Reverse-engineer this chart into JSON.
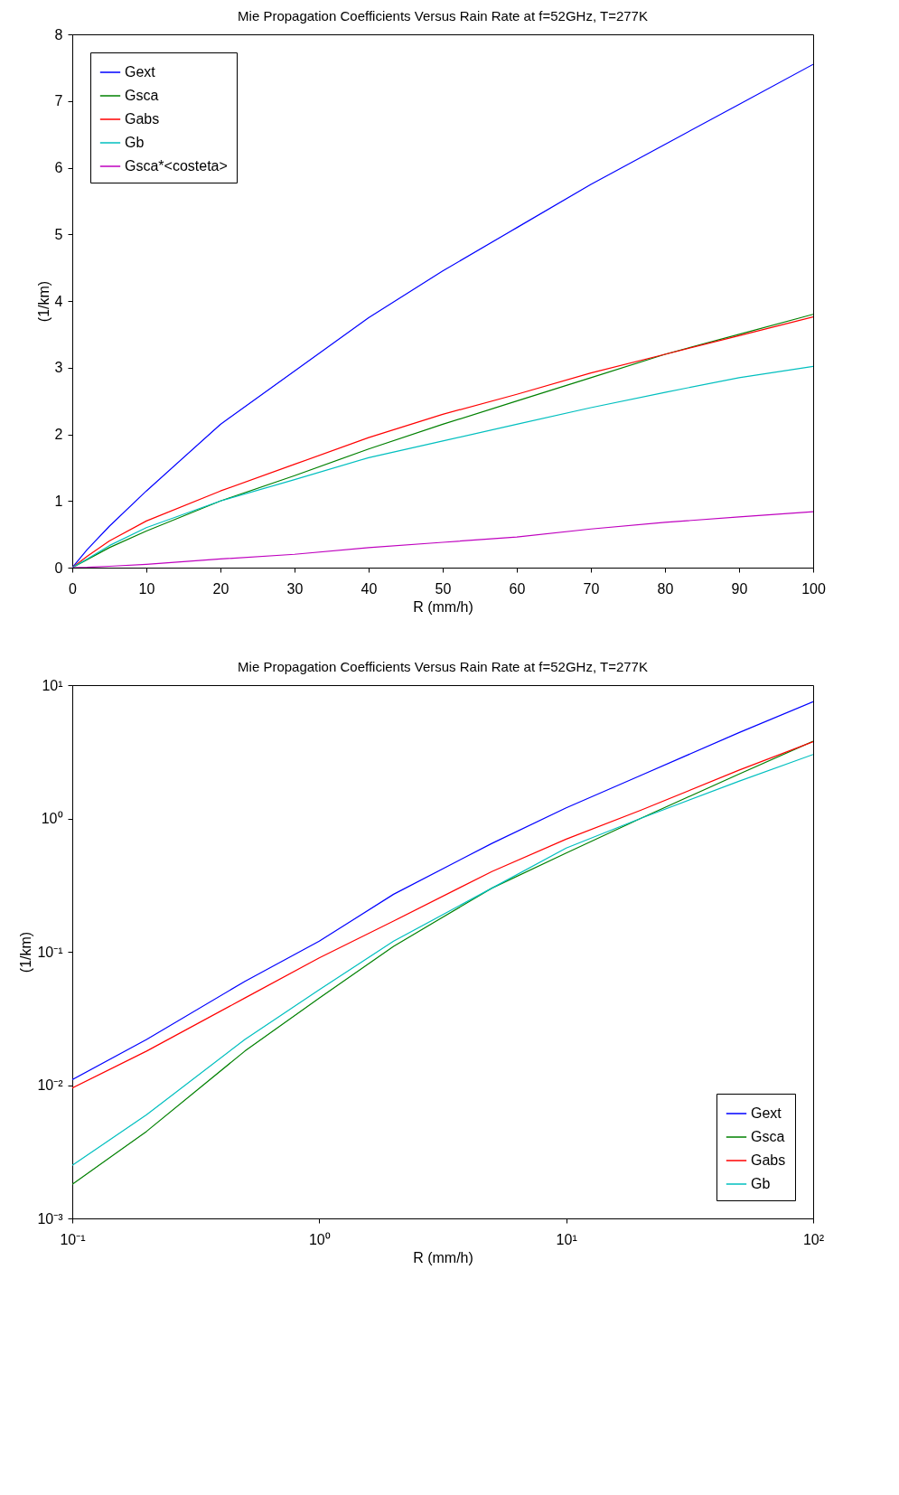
{
  "chart_data": [
    {
      "type": "line",
      "title": "Mie Propagation Coefficients Versus Rain Rate at f=52GHz, T=277K",
      "xlabel": "R (mm/h)",
      "ylabel": "(1/km)",
      "x": [
        0,
        2,
        5,
        10,
        20,
        30,
        40,
        50,
        60,
        70,
        80,
        90,
        100
      ],
      "xlim": [
        0,
        100
      ],
      "xticks": [
        0,
        10,
        20,
        30,
        40,
        50,
        60,
        70,
        80,
        90,
        100
      ],
      "ylim": [
        0,
        8
      ],
      "yticks": [
        0,
        1,
        2,
        3,
        4,
        5,
        6,
        7,
        8
      ],
      "legend": "top left",
      "grid": false,
      "series": [
        {
          "name": "Gext",
          "color": "#0000ff",
          "values": [
            0,
            0.27,
            0.62,
            1.15,
            2.15,
            2.95,
            3.75,
            4.45,
            5.1,
            5.75,
            6.35,
            6.95,
            7.55
          ]
        },
        {
          "name": "Gsca",
          "color": "#008000",
          "values": [
            0,
            0.12,
            0.3,
            0.55,
            1.0,
            1.38,
            1.78,
            2.15,
            2.5,
            2.85,
            3.2,
            3.5,
            3.8
          ]
        },
        {
          "name": "Gabs",
          "color": "#ff0000",
          "values": [
            0,
            0.17,
            0.4,
            0.7,
            1.15,
            1.55,
            1.95,
            2.3,
            2.6,
            2.92,
            3.2,
            3.48,
            3.76
          ]
        },
        {
          "name": "Gb",
          "color": "#00bfbf",
          "values": [
            0,
            0.13,
            0.33,
            0.6,
            1.0,
            1.32,
            1.65,
            1.9,
            2.15,
            2.4,
            2.63,
            2.85,
            3.02
          ]
        },
        {
          "name": "Gsca*<costeta>",
          "color": "#bf00bf",
          "values": [
            0,
            0.005,
            0.02,
            0.05,
            0.13,
            0.2,
            0.3,
            0.38,
            0.46,
            0.58,
            0.68,
            0.76,
            0.84
          ]
        }
      ]
    },
    {
      "type": "line",
      "title": "Mie Propagation Coefficients Versus Rain Rate at f=52GHz, T=277K",
      "xlabel": "R (mm/h)",
      "ylabel": "(1/km)",
      "x": [
        0.1,
        0.2,
        0.5,
        1,
        2,
        5,
        10,
        20,
        50,
        100
      ],
      "log": "xy",
      "xlim": [
        0.1,
        100
      ],
      "xticks": [
        {
          "value": 0.1,
          "label": "10⁻¹"
        },
        {
          "value": 1,
          "label": "10⁰"
        },
        {
          "value": 10,
          "label": "10¹"
        },
        {
          "value": 100,
          "label": "10²"
        }
      ],
      "ylim": [
        0.001,
        10
      ],
      "yticks": [
        {
          "value": 0.001,
          "label": "10⁻³"
        },
        {
          "value": 0.01,
          "label": "10⁻²"
        },
        {
          "value": 0.1,
          "label": "10⁻¹"
        },
        {
          "value": 1,
          "label": "10⁰"
        },
        {
          "value": 10,
          "label": "10¹"
        }
      ],
      "legend": "bottom right",
      "grid": false,
      "series": [
        {
          "name": "Gext",
          "color": "#0000ff",
          "values": [
            0.011,
            0.022,
            0.06,
            0.12,
            0.27,
            0.65,
            1.2,
            2.1,
            4.4,
            7.5
          ]
        },
        {
          "name": "Gsca",
          "color": "#008000",
          "values": [
            0.0018,
            0.0045,
            0.018,
            0.045,
            0.11,
            0.3,
            0.55,
            1.0,
            2.15,
            3.8
          ]
        },
        {
          "name": "Gabs",
          "color": "#ff0000",
          "values": [
            0.0095,
            0.018,
            0.045,
            0.09,
            0.17,
            0.4,
            0.7,
            1.15,
            2.3,
            3.76
          ]
        },
        {
          "name": "Gb",
          "color": "#00bfbf",
          "values": [
            0.0025,
            0.006,
            0.022,
            0.052,
            0.12,
            0.3,
            0.6,
            1.0,
            1.9,
            3.02
          ]
        }
      ]
    }
  ]
}
